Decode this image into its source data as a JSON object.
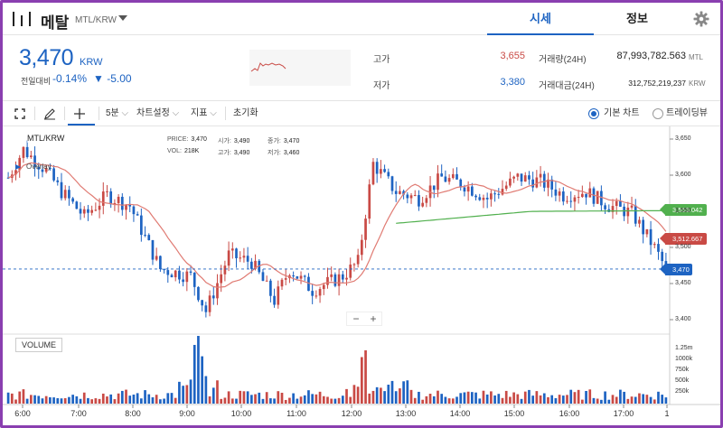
{
  "header": {
    "coin_name": "메탈",
    "pair": "MTL/KRW",
    "tabs": [
      "시세",
      "정보"
    ]
  },
  "ticker": {
    "price": "3,470",
    "unit": "KRW",
    "change_label": "전일대비",
    "change_pct": "-0.14%",
    "change_abs": "▼ -5.00",
    "high_label": "고가",
    "high": "3,655",
    "low_label": "저가",
    "low": "3,380",
    "volume_label": "거래량(24H)",
    "volume": "87,993,782.563",
    "volume_unit": "MTL",
    "amount_label": "거래대금(24H)",
    "amount": "312,752,219,237",
    "amount_unit": "KRW"
  },
  "toolbar": {
    "interval": "5분",
    "chart_settings": "차트설정",
    "indicators": "지표",
    "reset": "초기화",
    "basic_chart": "기본 차트",
    "trading_view": "트레이딩뷰"
  },
  "chart": {
    "pair_label": "MTL/KRW",
    "overlay_label": "Overlay",
    "ohlc": {
      "price_label": "PRICE:",
      "price": "3,470",
      "open_label": "시가:",
      "open": "3,490",
      "close_label": "종가:",
      "close": "3,470",
      "vol_label": "VOL:",
      "vol": "218K",
      "high_label": "고가:",
      "high": "3,490",
      "low_label": "저가:",
      "low": "3,460"
    },
    "volume_label": "VOLUME",
    "zoom_minus": "−",
    "zoom_plus": "+",
    "tag_green": "3,553.042",
    "tag_red": "3,512.667",
    "tag_current": "3,470",
    "colors": {
      "up": "#c94a45",
      "down": "#1d63c2",
      "ma_short": "#e07b73",
      "ma_long": "#51b04e",
      "accent": "#1d63c2"
    }
  },
  "chart_data": {
    "type": "candlestick",
    "ylim": [
      3380,
      3660
    ],
    "price_ticks": [
      "3,650",
      "3,600",
      "3,550",
      "3,500",
      "3,450",
      "3,400"
    ],
    "volume_ticks": [
      "1.25m",
      "1000k",
      "750k",
      "500k",
      "250k"
    ],
    "time_ticks": [
      "6:00",
      "7:00",
      "8:00",
      "9:00",
      "10:00",
      "11:00",
      "12:00",
      "13:00",
      "14:00",
      "15:00",
      "16:00",
      "17:00",
      "1"
    ],
    "waypoints": [
      [
        0,
        3600
      ],
      [
        4,
        3640
      ],
      [
        10,
        3610
      ],
      [
        14,
        3580
      ],
      [
        20,
        3545
      ],
      [
        26,
        3575
      ],
      [
        32,
        3560
      ],
      [
        40,
        3470
      ],
      [
        48,
        3460
      ],
      [
        52,
        3410
      ],
      [
        58,
        3490
      ],
      [
        64,
        3480
      ],
      [
        70,
        3425
      ],
      [
        74,
        3470
      ],
      [
        78,
        3450
      ],
      [
        80,
        3440
      ],
      [
        84,
        3450
      ],
      [
        88,
        3460
      ],
      [
        92,
        3480
      ],
      [
        96,
        3620
      ],
      [
        102,
        3580
      ],
      [
        108,
        3570
      ],
      [
        114,
        3600
      ],
      [
        120,
        3590
      ],
      [
        126,
        3570
      ],
      [
        134,
        3600
      ],
      [
        140,
        3595
      ],
      [
        146,
        3575
      ],
      [
        152,
        3580
      ],
      [
        158,
        3560
      ],
      [
        164,
        3550
      ],
      [
        170,
        3500
      ],
      [
        173,
        3470
      ]
    ],
    "ma_short_anchor": [
      3610,
      3475,
      3490,
      3560
    ],
    "ma_long_anchor": [
      3535,
      3552,
      3553
    ]
  }
}
